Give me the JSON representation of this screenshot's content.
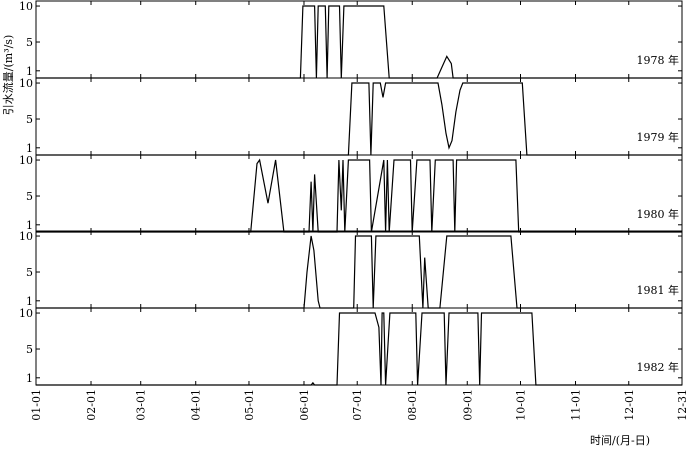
{
  "chart_data": [
    {
      "type": "line",
      "label": "1978 年",
      "ylabel": "引水流量/(m³/s)",
      "xlim": [
        0,
        364
      ],
      "ylim": [
        0,
        10.7
      ],
      "yticks": [
        1,
        5,
        10
      ],
      "x": [
        0,
        149,
        150.4,
        157,
        158,
        159,
        163,
        164,
        165,
        171,
        172,
        173.5,
        196,
        199,
        226,
        228.7,
        231.5,
        234,
        235,
        364
      ],
      "values": [
        0,
        0,
        10,
        10,
        0,
        10,
        10,
        0,
        10,
        10,
        0,
        10,
        10,
        0,
        0,
        1.5,
        3,
        2,
        0,
        0
      ]
    },
    {
      "type": "line",
      "label": "1979 年",
      "xlim": [
        0,
        364
      ],
      "ylim": [
        0,
        10.7
      ],
      "yticks": [
        1,
        5,
        10
      ],
      "x": [
        0,
        176,
        178,
        187.6,
        188.7,
        190,
        194,
        195.5,
        197,
        226.5,
        228.7,
        231,
        232.7,
        234.4,
        236.6,
        238.9,
        240.5,
        274,
        276.6,
        364
      ],
      "values": [
        0,
        0,
        10,
        10,
        0,
        10,
        10,
        8,
        10,
        10,
        7,
        3,
        1,
        2,
        6,
        9,
        10,
        10,
        0,
        0
      ]
    },
    {
      "type": "line",
      "label": "1980 年",
      "xlim": [
        0,
        364
      ],
      "ylim": [
        0,
        10.7
      ],
      "yticks": [
        1,
        5,
        10
      ],
      "x": [
        0,
        121,
        124.5,
        126,
        130.7,
        135,
        139.7,
        153.8,
        155,
        156,
        157,
        159,
        169.6,
        170.7,
        172,
        173,
        174,
        176,
        188,
        189,
        196,
        197,
        198,
        199,
        201.7,
        211,
        212,
        214.6,
        222,
        223,
        225,
        235,
        236,
        237,
        270.4,
        272,
        364
      ],
      "values": [
        0,
        0,
        9.5,
        10,
        4,
        10,
        0,
        0,
        7,
        0,
        8,
        0,
        0,
        10,
        3,
        10,
        0,
        10,
        10,
        0,
        10,
        0,
        10,
        0,
        10,
        10,
        0,
        10,
        10,
        0,
        10,
        10,
        0,
        10,
        10,
        0,
        0
      ]
    },
    {
      "type": "line",
      "label": "1981 年",
      "xlim": [
        0,
        364
      ],
      "ylim": [
        0,
        10.7
      ],
      "yticks": [
        1,
        5,
        10
      ],
      "x": [
        0,
        151,
        152.7,
        155,
        156.6,
        159,
        160,
        179,
        180,
        189,
        190,
        191.5,
        216,
        218,
        219,
        221,
        227.6,
        231.5,
        267.6,
        271,
        364
      ],
      "values": [
        0,
        0,
        5,
        10,
        8,
        1,
        0,
        0,
        10,
        10,
        0,
        10,
        10,
        0,
        7,
        0,
        0,
        10,
        10,
        0,
        0
      ]
    },
    {
      "type": "line",
      "label": "1982 年",
      "xlim": [
        0,
        364
      ],
      "ylim": [
        0,
        10.7
      ],
      "yticks": [
        1,
        5,
        10
      ],
      "xlabel": "时间/(月-日)",
      "xticks": [
        {
          "value": 0,
          "label": "01-01"
        },
        {
          "value": 31,
          "label": "02-01"
        },
        {
          "value": 59,
          "label": "03-01"
        },
        {
          "value": 90,
          "label": "04-01"
        },
        {
          "value": 120,
          "label": "05-01"
        },
        {
          "value": 151,
          "label": "06-01"
        },
        {
          "value": 181,
          "label": "07-01"
        },
        {
          "value": 212,
          "label": "08-01"
        },
        {
          "value": 243,
          "label": "09-01"
        },
        {
          "value": 273,
          "label": "10-01"
        },
        {
          "value": 304,
          "label": "11-01"
        },
        {
          "value": 334,
          "label": "12-01"
        },
        {
          "value": 364,
          "label": "12-31"
        }
      ],
      "x": [
        0,
        155,
        156,
        157,
        169.6,
        171,
        191,
        193.2,
        194.4,
        195,
        196,
        197,
        199.4,
        214,
        215,
        217.5,
        230,
        231,
        232.7,
        249,
        250,
        251,
        279.4,
        281.7,
        364
      ],
      "values": [
        0,
        0,
        0.3,
        0,
        0,
        10,
        10,
        8,
        0,
        10,
        10,
        0,
        10,
        10,
        0,
        10,
        10,
        0,
        10,
        10,
        0,
        10,
        10,
        0,
        0
      ]
    }
  ]
}
